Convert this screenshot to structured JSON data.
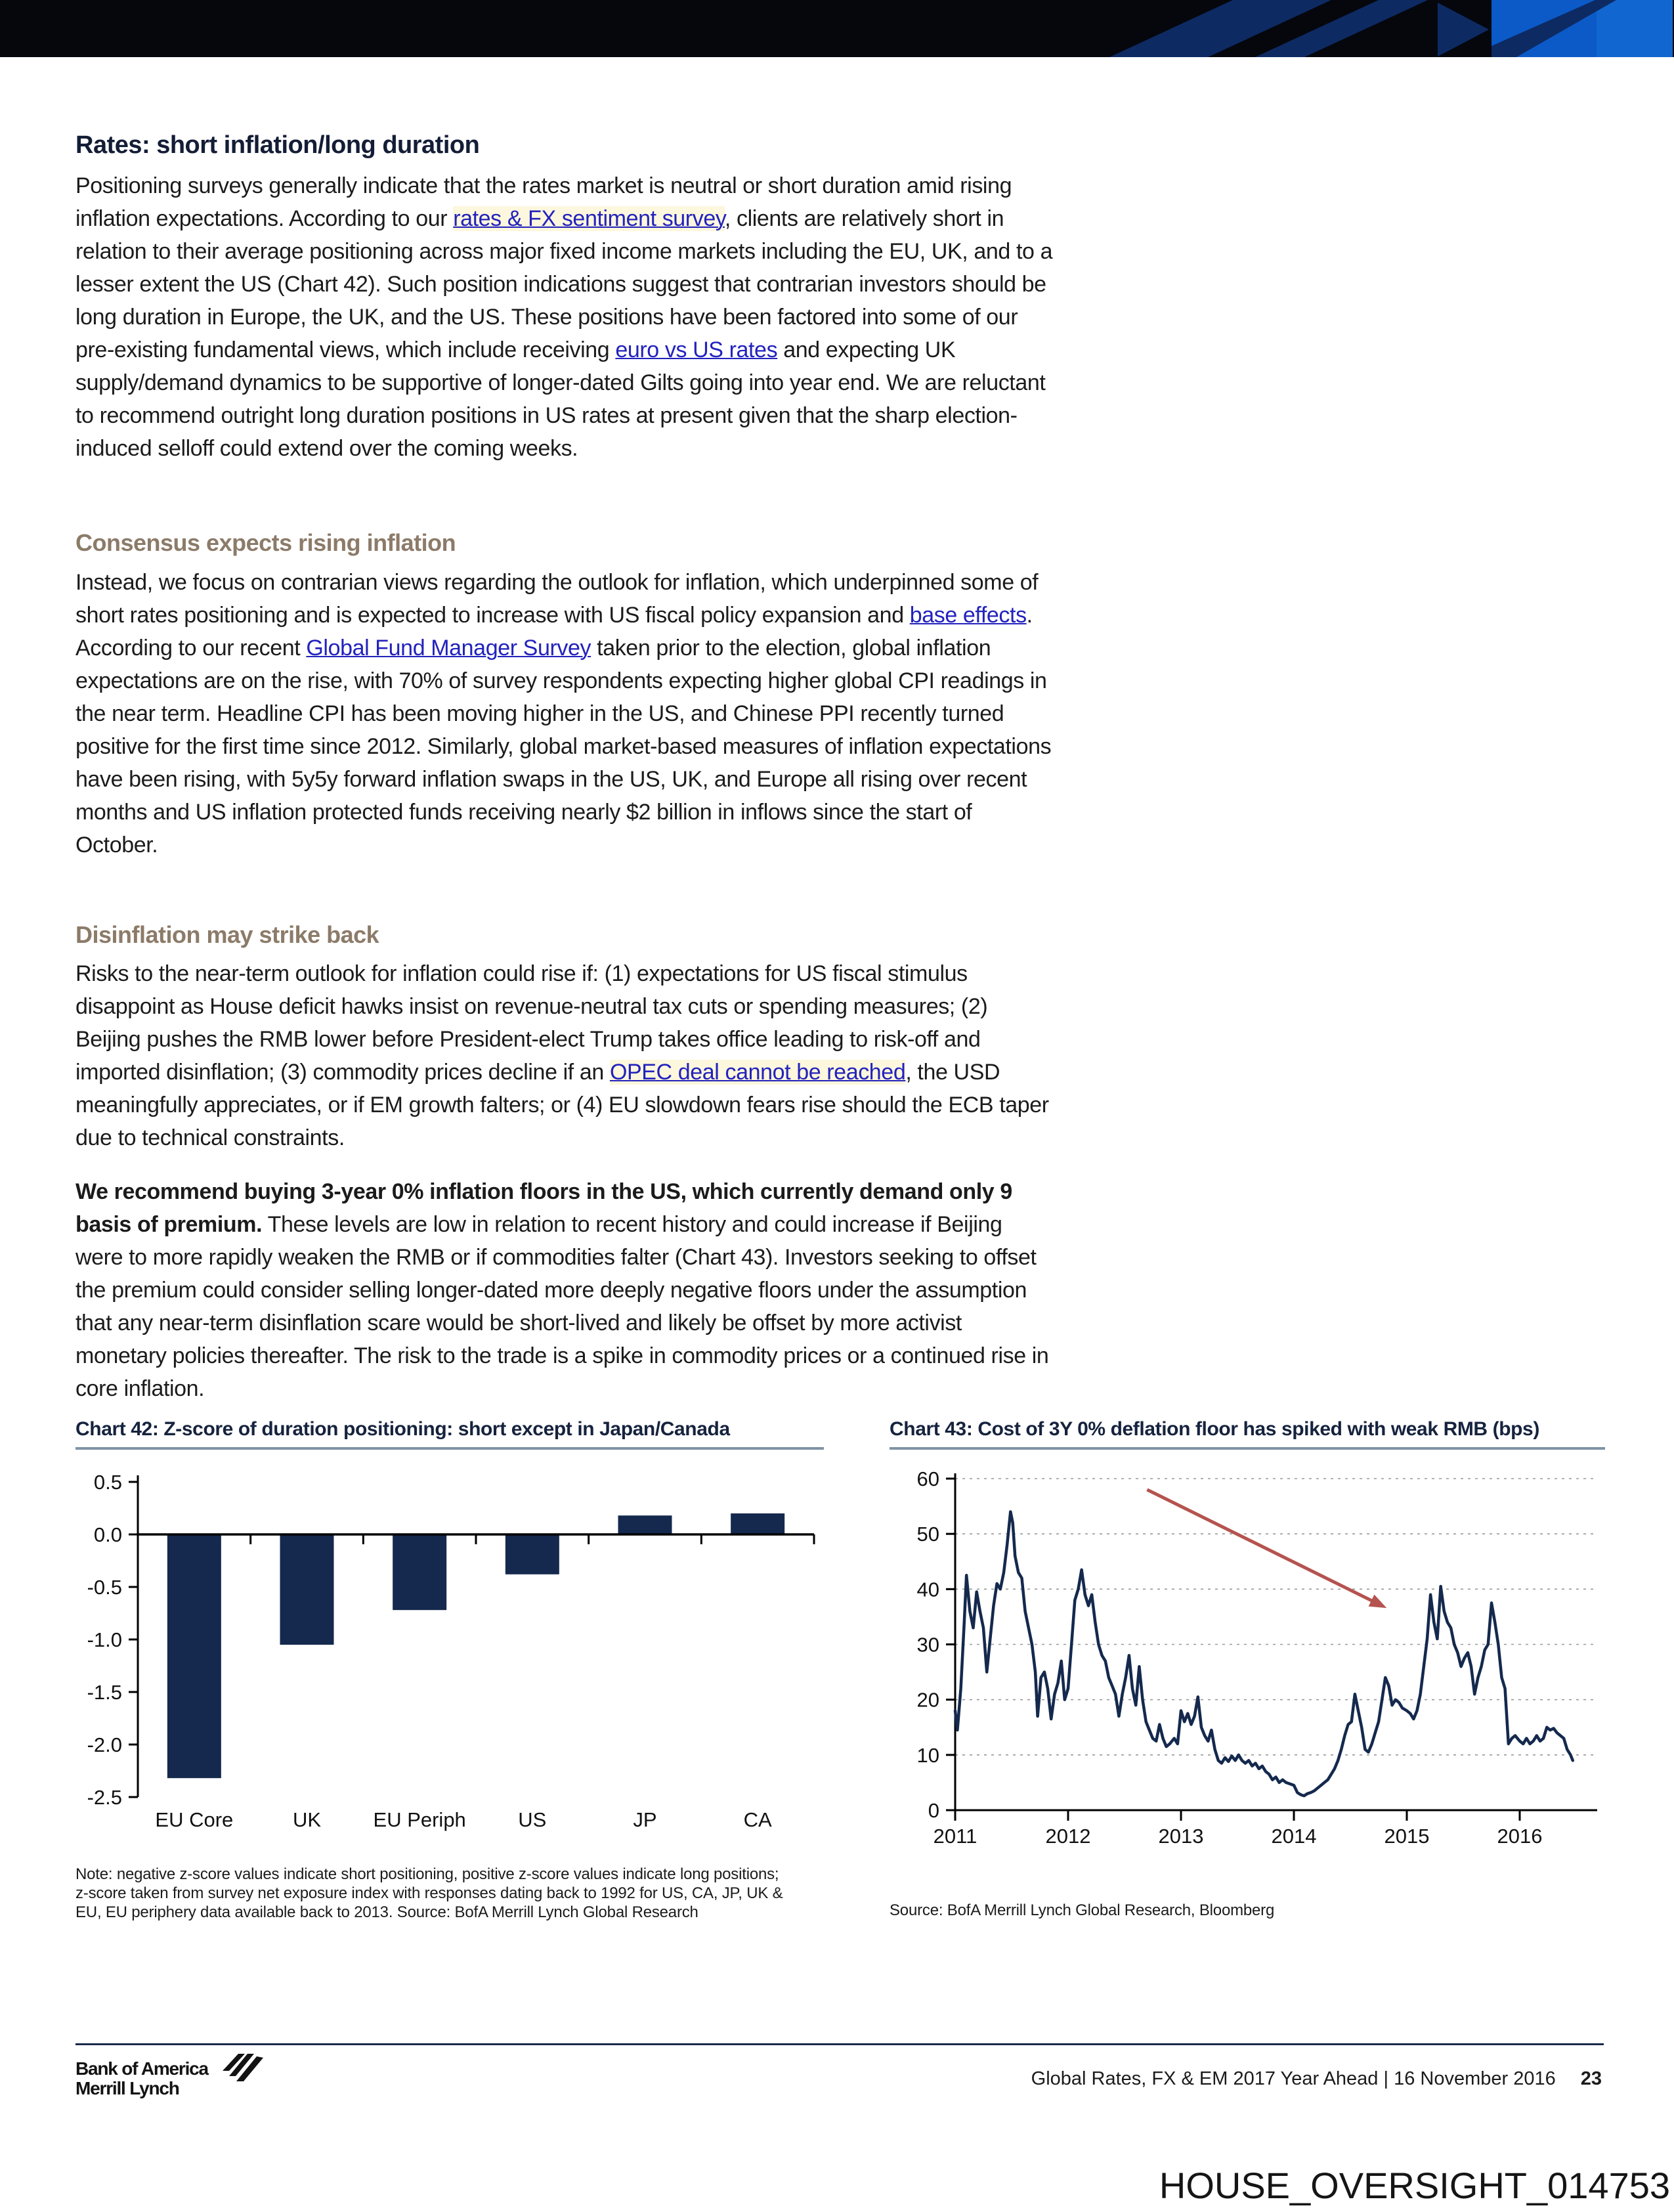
{
  "article": {
    "h1": "Rates: short inflation/long duration",
    "p1": [
      {
        "text": "Positioning surveys generally indicate that the rates market is neutral or short duration amid rising inflation expectations. According to our "
      },
      {
        "text": "rates & FX sentiment survey",
        "link": true,
        "highlight": true
      },
      {
        "text": ", clients are relatively short in relation to their average positioning across major fixed income markets including the EU, UK, and to a lesser extent the US (Chart 42). Such position indications suggest that contrarian investors should be long duration in Europe, the UK, and the US. These positions have been factored into some of our pre-existing fundamental views, which include receiving "
      },
      {
        "text": "euro vs US rates",
        "link": true
      },
      {
        "text": " and expecting UK supply/demand dynamics to be supportive of longer-dated Gilts going into year end. We are reluctant to recommend outright long duration positions in US rates at present given that the sharp election-induced selloff could extend over the coming weeks."
      }
    ],
    "h2a": "Consensus expects rising inflation",
    "p2": [
      {
        "text": "Instead, we focus on contrarian views regarding the outlook for inflation, which underpinned some of short rates positioning and is expected to increase with US fiscal policy expansion and "
      },
      {
        "text": "base effects",
        "link": true
      },
      {
        "text": ". According to our recent "
      },
      {
        "text": "Global Fund Manager Survey",
        "link": true
      },
      {
        "text": " taken prior to the election, global inflation expectations are on the rise, with 70% of survey respondents expecting higher global CPI readings in the near term. Headline CPI has been moving higher in the US, and Chinese PPI recently turned positive for the first time since 2012. Similarly, global market-based measures of inflation expectations have been rising, with 5y5y forward inflation swaps in the US, UK, and Europe all rising over recent months and US inflation protected funds receiving nearly $2 billion in inflows since the start of October."
      }
    ],
    "h2b": "Disinflation may strike back",
    "p3": [
      {
        "text": "Risks to the near-term outlook for inflation could rise if: (1) expectations for US fiscal stimulus disappoint as House deficit hawks insist on revenue-neutral tax cuts or spending measures; (2) Beijing pushes the RMB lower before President-elect Trump takes office leading to risk-off and imported disinflation; (3) commodity prices decline if an "
      },
      {
        "text": "OPEC deal cannot be reached",
        "link": true,
        "highlight": true
      },
      {
        "text": ", the USD meaningfully appreciates, or if EM growth falters; or (4) EU slowdown fears rise should the ECB taper due to technical constraints."
      }
    ],
    "p4": [
      {
        "text": "We recommend buying 3-year 0% inflation floors in the US, which currently demand only 9 basis of premium.",
        "bold": true
      },
      {
        "text": " These levels are low in relation to recent history and could increase if Beijing were to more rapidly weaken the RMB or if commodities falter (Chart 43). Investors seeking to offset the premium could consider selling longer-dated more deeply negative floors under the assumption that any near-term disinflation scare would be short-lived and likely be offset by more activist monetary policies thereafter. The risk to the trade is a spike in commodity prices or a continued rise in core inflation."
      }
    ]
  },
  "chart_data": [
    {
      "type": "bar",
      "title": "Chart 42: Z-score of duration positioning: short except in Japan/Canada",
      "categories": [
        "EU Core",
        "UK",
        "EU Periph",
        "US",
        "JP",
        "CA"
      ],
      "values": [
        -2.32,
        -1.05,
        -0.72,
        -0.38,
        0.18,
        0.2
      ],
      "ylim": [
        -2.5,
        0.5
      ],
      "yticks": [
        0.5,
        0.0,
        -0.5,
        -1.0,
        -1.5,
        -2.0,
        -2.5
      ],
      "ytick_labels": [
        "0.5",
        "0.0",
        "-0.5",
        "-1.0",
        "-1.5",
        "-2.0",
        "-2.5"
      ],
      "bar_color": "#14294d",
      "axis_color": "#000000",
      "grid": false,
      "note": "Note: negative z-score values indicate short positioning, positive z-score values indicate long positions; z-score taken from survey net exposure index with responses dating back to 1992 for US, CA, JP, UK & EU, EU periphery data available back to 2013. Source: BofA Merrill Lynch Global Research"
    },
    {
      "type": "line",
      "title": "Chart 43: Cost of 3Y 0% deflation floor has spiked with weak RMB (bps)",
      "xlim": [
        2011,
        2016.7
      ],
      "ylim": [
        0,
        60
      ],
      "yticks": [
        0,
        10,
        20,
        30,
        40,
        50,
        60
      ],
      "xticks": [
        2011,
        2012,
        2013,
        2014,
        2015,
        2016
      ],
      "grid": "dashed-horizontal",
      "grid_color": "#999999",
      "line_color": "#14294d",
      "arrow": {
        "x1": 2012.7,
        "y1": 58,
        "x2": 2014.78,
        "y2": 37,
        "color": "#b5534f"
      },
      "source": "Source: BofA Merrill Lynch Global Research, Bloomberg",
      "points": [
        [
          2011.0,
          18
        ],
        [
          2011.02,
          14.5
        ],
        [
          2011.05,
          22
        ],
        [
          2011.08,
          34
        ],
        [
          2011.1,
          42.5
        ],
        [
          2011.13,
          36
        ],
        [
          2011.16,
          33
        ],
        [
          2011.19,
          39.5
        ],
        [
          2011.22,
          36
        ],
        [
          2011.25,
          33
        ],
        [
          2011.28,
          25
        ],
        [
          2011.31,
          31
        ],
        [
          2011.34,
          37
        ],
        [
          2011.37,
          41
        ],
        [
          2011.4,
          40
        ],
        [
          2011.43,
          43
        ],
        [
          2011.46,
          48
        ],
        [
          2011.49,
          54
        ],
        [
          2011.51,
          52
        ],
        [
          2011.53,
          46
        ],
        [
          2011.56,
          43
        ],
        [
          2011.59,
          42
        ],
        [
          2011.62,
          36
        ],
        [
          2011.65,
          33
        ],
        [
          2011.68,
          30
        ],
        [
          2011.71,
          25
        ],
        [
          2011.73,
          17
        ],
        [
          2011.76,
          24
        ],
        [
          2011.79,
          25
        ],
        [
          2011.82,
          22
        ],
        [
          2011.85,
          16.5
        ],
        [
          2011.88,
          21
        ],
        [
          2011.91,
          23
        ],
        [
          2011.94,
          27
        ],
        [
          2011.97,
          20
        ],
        [
          2012.0,
          22
        ],
        [
          2012.03,
          30
        ],
        [
          2012.06,
          38
        ],
        [
          2012.09,
          40
        ],
        [
          2012.12,
          43.5
        ],
        [
          2012.15,
          39
        ],
        [
          2012.18,
          37
        ],
        [
          2012.21,
          39
        ],
        [
          2012.24,
          34
        ],
        [
          2012.27,
          30
        ],
        [
          2012.3,
          28
        ],
        [
          2012.33,
          27
        ],
        [
          2012.36,
          24
        ],
        [
          2012.39,
          22.5
        ],
        [
          2012.42,
          21
        ],
        [
          2012.45,
          17
        ],
        [
          2012.48,
          21
        ],
        [
          2012.51,
          24
        ],
        [
          2012.54,
          28
        ],
        [
          2012.57,
          22
        ],
        [
          2012.6,
          19
        ],
        [
          2012.63,
          26
        ],
        [
          2012.66,
          20
        ],
        [
          2012.69,
          16
        ],
        [
          2012.72,
          14.5
        ],
        [
          2012.75,
          13
        ],
        [
          2012.78,
          12.5
        ],
        [
          2012.81,
          15.5
        ],
        [
          2012.84,
          13
        ],
        [
          2012.87,
          11.5
        ],
        [
          2012.9,
          12
        ],
        [
          2012.94,
          13
        ],
        [
          2012.97,
          12
        ],
        [
          2013.0,
          18
        ],
        [
          2013.03,
          16
        ],
        [
          2013.06,
          17.5
        ],
        [
          2013.09,
          15.5
        ],
        [
          2013.12,
          17
        ],
        [
          2013.15,
          20.5
        ],
        [
          2013.18,
          15
        ],
        [
          2013.21,
          13.5
        ],
        [
          2013.24,
          12.5
        ],
        [
          2013.27,
          14.5
        ],
        [
          2013.3,
          11
        ],
        [
          2013.33,
          9
        ],
        [
          2013.36,
          8.5
        ],
        [
          2013.39,
          9.5
        ],
        [
          2013.42,
          8.8
        ],
        [
          2013.45,
          9.8
        ],
        [
          2013.48,
          9
        ],
        [
          2013.51,
          10
        ],
        [
          2013.54,
          9
        ],
        [
          2013.57,
          8.5
        ],
        [
          2013.6,
          9
        ],
        [
          2013.63,
          8
        ],
        [
          2013.66,
          8.5
        ],
        [
          2013.69,
          7.5
        ],
        [
          2013.72,
          8
        ],
        [
          2013.75,
          7
        ],
        [
          2013.78,
          6.5
        ],
        [
          2013.81,
          5.5
        ],
        [
          2013.84,
          6
        ],
        [
          2013.87,
          5
        ],
        [
          2013.9,
          5.5
        ],
        [
          2013.93,
          5
        ],
        [
          2013.96,
          4.8
        ],
        [
          2014.0,
          4.5
        ],
        [
          2014.03,
          3.2
        ],
        [
          2014.06,
          2.8
        ],
        [
          2014.09,
          2.6
        ],
        [
          2014.12,
          3
        ],
        [
          2014.15,
          3.2
        ],
        [
          2014.18,
          3.5
        ],
        [
          2014.21,
          4
        ],
        [
          2014.24,
          4.5
        ],
        [
          2014.27,
          5
        ],
        [
          2014.3,
          5.5
        ],
        [
          2014.33,
          6.5
        ],
        [
          2014.36,
          7.5
        ],
        [
          2014.39,
          9
        ],
        [
          2014.42,
          11
        ],
        [
          2014.45,
          13.5
        ],
        [
          2014.48,
          15.5
        ],
        [
          2014.51,
          16
        ],
        [
          2014.54,
          21
        ],
        [
          2014.57,
          18
        ],
        [
          2014.6,
          15
        ],
        [
          2014.63,
          11
        ],
        [
          2014.66,
          10.5
        ],
        [
          2014.69,
          12
        ],
        [
          2014.72,
          14
        ],
        [
          2014.75,
          16
        ],
        [
          2014.78,
          20
        ],
        [
          2014.81,
          24
        ],
        [
          2014.84,
          22.5
        ],
        [
          2014.87,
          19
        ],
        [
          2014.9,
          20
        ],
        [
          2014.93,
          19.5
        ],
        [
          2014.96,
          18.5
        ],
        [
          2015.0,
          18
        ],
        [
          2015.03,
          17.5
        ],
        [
          2015.06,
          16.5
        ],
        [
          2015.09,
          18
        ],
        [
          2015.12,
          21
        ],
        [
          2015.15,
          26
        ],
        [
          2015.18,
          31
        ],
        [
          2015.21,
          39
        ],
        [
          2015.24,
          34
        ],
        [
          2015.27,
          31
        ],
        [
          2015.3,
          40.5
        ],
        [
          2015.33,
          36
        ],
        [
          2015.36,
          34
        ],
        [
          2015.39,
          33
        ],
        [
          2015.42,
          30
        ],
        [
          2015.45,
          28.5
        ],
        [
          2015.48,
          26
        ],
        [
          2015.51,
          27.5
        ],
        [
          2015.54,
          28.5
        ],
        [
          2015.57,
          26
        ],
        [
          2015.6,
          21
        ],
        [
          2015.63,
          24
        ],
        [
          2015.66,
          26
        ],
        [
          2015.69,
          29
        ],
        [
          2015.72,
          30
        ],
        [
          2015.75,
          37.5
        ],
        [
          2015.78,
          34
        ],
        [
          2015.81,
          30
        ],
        [
          2015.84,
          24
        ],
        [
          2015.87,
          22
        ],
        [
          2015.9,
          12
        ],
        [
          2015.93,
          13
        ],
        [
          2015.96,
          13.5
        ],
        [
          2016.0,
          12.5
        ],
        [
          2016.03,
          12
        ],
        [
          2016.06,
          13
        ],
        [
          2016.09,
          12
        ],
        [
          2016.12,
          12.5
        ],
        [
          2016.15,
          13.5
        ],
        [
          2016.18,
          12.5
        ],
        [
          2016.21,
          13
        ],
        [
          2016.24,
          15
        ],
        [
          2016.27,
          14.5
        ],
        [
          2016.3,
          14.8
        ],
        [
          2016.33,
          14
        ],
        [
          2016.36,
          13.5
        ],
        [
          2016.39,
          13
        ],
        [
          2016.42,
          11
        ],
        [
          2016.45,
          10
        ],
        [
          2016.47,
          9
        ]
      ]
    }
  ],
  "footer": {
    "brand_line1": "Bank of America",
    "brand_line2": "Merrill Lynch",
    "doc_title": "Global Rates, FX & EM 2017 Year Ahead | 16 November 2016",
    "page_number": "23"
  },
  "watermark": "HOUSE_OVERSIGHT_014753",
  "colors": {
    "banner_black": "#05070d",
    "banner_navy": "#0d2a63",
    "banner_blue": "#0b5ac8",
    "banner_light_blue": "#1166cf",
    "heading_navy": "#141d36",
    "heading_brown": "#8c7b69",
    "link_blue": "#2222bd",
    "series_navy": "#14294d",
    "arrow_red": "#b5534f"
  }
}
